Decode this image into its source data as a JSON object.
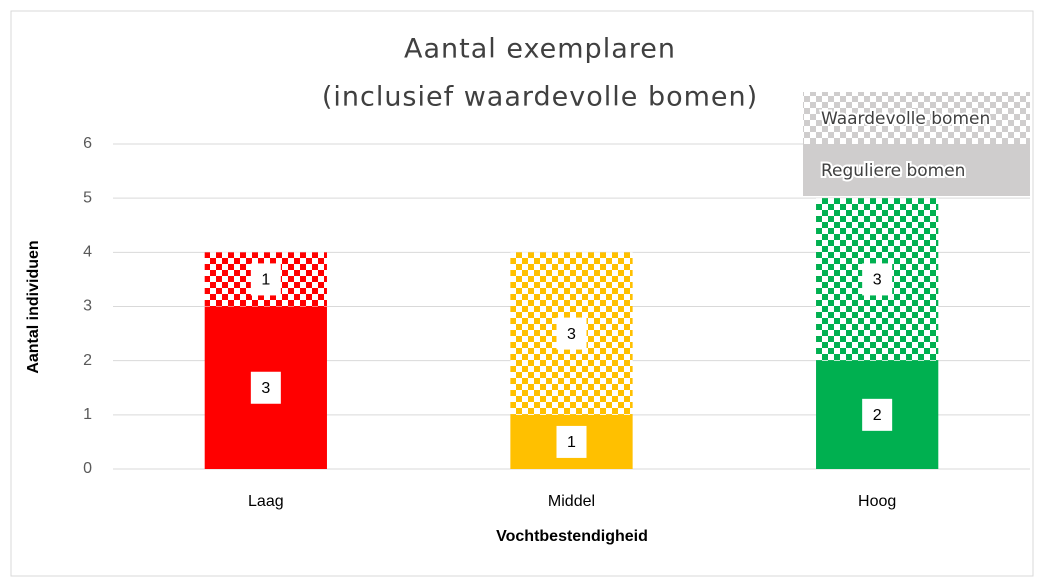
{
  "chart_data": {
    "type": "bar",
    "stacked": true,
    "title": [
      "Aantal exemplaren",
      "(inclusief waardevolle bomen)"
    ],
    "x_label": "Vochtbestendigheid",
    "y_label": "Aantal individuen",
    "categories": [
      "Laag",
      "Middel",
      "Hoog"
    ],
    "category_colors": [
      "#ff0000",
      "#ffc000",
      "#00b050"
    ],
    "series": [
      {
        "name": "Reguliere bomen",
        "color": "#cfcdcd",
        "pattern": "solid",
        "values": [
          3,
          1,
          2
        ]
      },
      {
        "name": "Waardevolle bomen",
        "color": "#cfcdcd",
        "pattern": "checker",
        "values": [
          1,
          3,
          3
        ]
      }
    ],
    "ylim": [
      0,
      6
    ],
    "yticks": [
      0,
      1,
      2,
      3,
      4,
      5,
      6
    ],
    "grid": true,
    "legend": "top-right"
  }
}
